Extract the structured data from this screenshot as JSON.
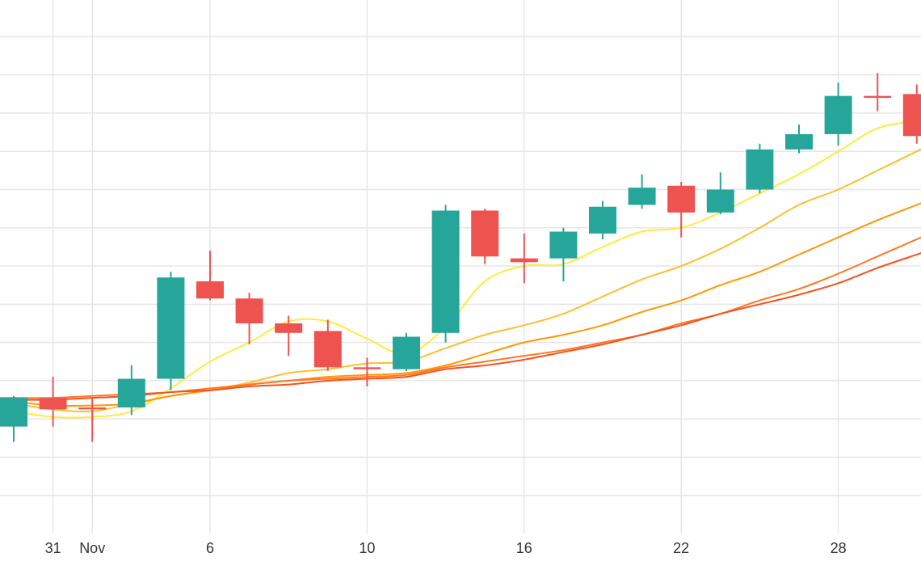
{
  "chart_data": {
    "type": "candlestick",
    "colors": {
      "up": "#26a69a",
      "down": "#ef5350",
      "grid": "#e6e6e6",
      "axis_text": "#333333"
    },
    "x_ticks": [
      {
        "index": 1,
        "label": "31"
      },
      {
        "index": 2,
        "label": "Nov"
      },
      {
        "index": 5,
        "label": "6"
      },
      {
        "index": 9,
        "label": "10"
      },
      {
        "index": 13,
        "label": "16"
      },
      {
        "index": 17,
        "label": "22"
      },
      {
        "index": 21,
        "label": "28"
      }
    ],
    "ylim": [
      0,
      140
    ],
    "y_gridlines": [
      10,
      20,
      30,
      40,
      50,
      60,
      70,
      80,
      90,
      100,
      110,
      120,
      130,
      140
    ],
    "candles": [
      {
        "i": 0,
        "open": 28.0,
        "high": 36.0,
        "low": 24.0,
        "close": 35.5
      },
      {
        "i": 1,
        "open": 35.5,
        "high": 41.0,
        "low": 28.0,
        "close": 32.5
      },
      {
        "i": 2,
        "open": 33.0,
        "high": 35.5,
        "low": 24.0,
        "close": 32.5
      },
      {
        "i": 3,
        "open": 33.0,
        "high": 44.0,
        "low": 31.0,
        "close": 40.5
      },
      {
        "i": 4,
        "open": 40.5,
        "high": 68.5,
        "low": 37.5,
        "close": 67.0
      },
      {
        "i": 5,
        "open": 66.0,
        "high": 74.0,
        "low": 61.0,
        "close": 61.5
      },
      {
        "i": 6,
        "open": 61.5,
        "high": 63.0,
        "low": 49.5,
        "close": 55.0
      },
      {
        "i": 7,
        "open": 55.0,
        "high": 57.0,
        "low": 46.5,
        "close": 52.5
      },
      {
        "i": 8,
        "open": 53.0,
        "high": 56.0,
        "low": 42.5,
        "close": 43.5
      },
      {
        "i": 9,
        "open": 43.5,
        "high": 46.0,
        "low": 38.5,
        "close": 43.0
      },
      {
        "i": 10,
        "open": 43.0,
        "high": 52.5,
        "low": 42.5,
        "close": 51.5
      },
      {
        "i": 11,
        "open": 52.5,
        "high": 86.0,
        "low": 50.0,
        "close": 84.5
      },
      {
        "i": 12,
        "open": 84.5,
        "high": 85.0,
        "low": 70.5,
        "close": 72.5
      },
      {
        "i": 13,
        "open": 72.0,
        "high": 78.5,
        "low": 65.5,
        "close": 71.0
      },
      {
        "i": 14,
        "open": 72.0,
        "high": 80.0,
        "low": 66.0,
        "close": 79.0
      },
      {
        "i": 15,
        "open": 78.5,
        "high": 87.0,
        "low": 77.0,
        "close": 85.5
      },
      {
        "i": 16,
        "open": 86.0,
        "high": 94.0,
        "low": 85.0,
        "close": 90.5
      },
      {
        "i": 17,
        "open": 91.0,
        "high": 92.0,
        "low": 77.5,
        "close": 84.0
      },
      {
        "i": 18,
        "open": 84.0,
        "high": 94.5,
        "low": 83.5,
        "close": 90.0
      },
      {
        "i": 19,
        "open": 90.0,
        "high": 102.0,
        "low": 89.0,
        "close": 100.5
      },
      {
        "i": 20,
        "open": 100.5,
        "high": 107.0,
        "low": 99.5,
        "close": 104.5
      },
      {
        "i": 21,
        "open": 104.5,
        "high": 118.0,
        "low": 101.5,
        "close": 114.5
      },
      {
        "i": 22,
        "open": 114.5,
        "high": 120.5,
        "low": 110.5,
        "close": 114.0
      },
      {
        "i": 23,
        "open": 115.0,
        "high": 117.5,
        "low": 102.0,
        "close": 104.0
      }
    ],
    "ma_series": [
      {
        "color": "#ffeb3b",
        "values": [
          32.0,
          30.5,
          30.5,
          32.0,
          38.0,
          45.0,
          50.0,
          55.5,
          55.5,
          51.0,
          47.0,
          54.0,
          66.0,
          70.0,
          70.5,
          75.0,
          79.0,
          80.0,
          84.0,
          89.0,
          94.0,
          100.0,
          106.0,
          108.0
        ]
      },
      {
        "color": "#fbc02d",
        "values": [
          34.0,
          32.5,
          32.0,
          34.0,
          36.0,
          37.5,
          39.5,
          42.0,
          43.0,
          44.5,
          45.0,
          48.5,
          52.0,
          54.5,
          57.5,
          62.0,
          66.5,
          70.0,
          74.5,
          80.0,
          86.0,
          90.0,
          95.0,
          100.0
        ]
      },
      {
        "color": "#ff9800",
        "values": [
          34.5,
          33.5,
          33.5,
          34.0,
          36.0,
          37.5,
          39.0,
          40.0,
          41.0,
          41.5,
          42.0,
          44.0,
          47.0,
          50.0,
          52.0,
          54.5,
          58.0,
          61.0,
          65.0,
          68.5,
          73.0,
          77.5,
          82.0,
          86.0
        ]
      },
      {
        "color": "#ff7722",
        "values": [
          35.5,
          35.5,
          36.0,
          36.5,
          37.0,
          38.0,
          39.0,
          40.0,
          40.5,
          41.0,
          41.5,
          43.5,
          45.0,
          46.5,
          48.0,
          50.0,
          52.0,
          55.0,
          57.5,
          61.0,
          64.0,
          68.0,
          72.5,
          77.0
        ]
      },
      {
        "color": "#f4511e",
        "values": [
          35.0,
          35.0,
          35.5,
          36.0,
          37.0,
          37.5,
          38.5,
          39.0,
          40.0,
          40.5,
          41.0,
          43.0,
          44.0,
          45.5,
          47.5,
          49.5,
          52.0,
          54.5,
          57.5,
          60.0,
          62.5,
          65.5,
          69.5,
          73.0
        ]
      }
    ]
  }
}
